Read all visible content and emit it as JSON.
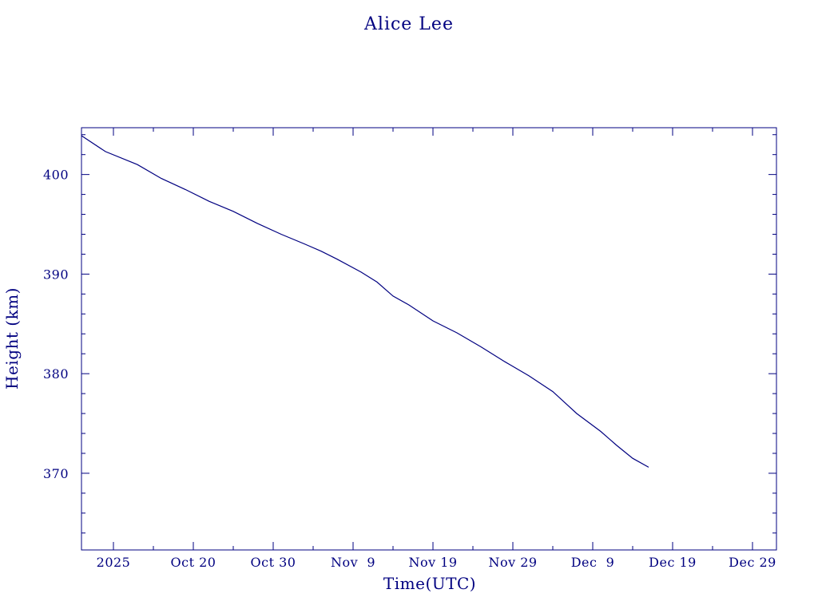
{
  "chart_data": {
    "type": "line",
    "title": "Alice Lee",
    "xlabel": "Time(UTC)",
    "ylabel": "Height (km)",
    "xlim": [
      "2025-10-06",
      "2026-01-01"
    ],
    "ylim": [
      362.3,
      404.7
    ],
    "x_ticks": [
      {
        "date": "2025-10-10",
        "label": "2025"
      },
      {
        "date": "2025-10-20",
        "label": "Oct 20"
      },
      {
        "date": "2025-10-30",
        "label": "Oct 30"
      },
      {
        "date": "2025-11-09",
        "label": "Nov  9"
      },
      {
        "date": "2025-11-19",
        "label": "Nov 19"
      },
      {
        "date": "2025-11-29",
        "label": "Nov 29"
      },
      {
        "date": "2025-12-09",
        "label": "Dec  9"
      },
      {
        "date": "2025-12-19",
        "label": "Dec 19"
      },
      {
        "date": "2025-12-29",
        "label": "Dec 29"
      }
    ],
    "x_minor_step_days": 5,
    "y_ticks": [
      370,
      380,
      390,
      400
    ],
    "y_minor_step": 2,
    "grid": false,
    "series": [
      {
        "color": "#000080",
        "points": [
          [
            "2025-10-06",
            403.9
          ],
          [
            "2025-10-09",
            402.3
          ],
          [
            "2025-10-13",
            401.0
          ],
          [
            "2025-10-16",
            399.6
          ],
          [
            "2025-10-19",
            398.5
          ],
          [
            "2025-10-22",
            397.3
          ],
          [
            "2025-10-25",
            396.3
          ],
          [
            "2025-10-28",
            395.1
          ],
          [
            "2025-10-31",
            394.0
          ],
          [
            "2025-11-03",
            393.0
          ],
          [
            "2025-11-05",
            392.3
          ],
          [
            "2025-11-07",
            391.5
          ],
          [
            "2025-11-10",
            390.2
          ],
          [
            "2025-11-12",
            389.2
          ],
          [
            "2025-11-14",
            387.8
          ],
          [
            "2025-11-16",
            386.9
          ],
          [
            "2025-11-19",
            385.3
          ],
          [
            "2025-11-22",
            384.1
          ],
          [
            "2025-11-25",
            382.7
          ],
          [
            "2025-11-28",
            381.2
          ],
          [
            "2025-12-01",
            379.8
          ],
          [
            "2025-12-04",
            378.2
          ],
          [
            "2025-12-07",
            376.0
          ],
          [
            "2025-12-10",
            374.2
          ],
          [
            "2025-12-12",
            372.8
          ],
          [
            "2025-12-14",
            371.5
          ],
          [
            "2025-12-16",
            370.6
          ]
        ]
      }
    ]
  }
}
